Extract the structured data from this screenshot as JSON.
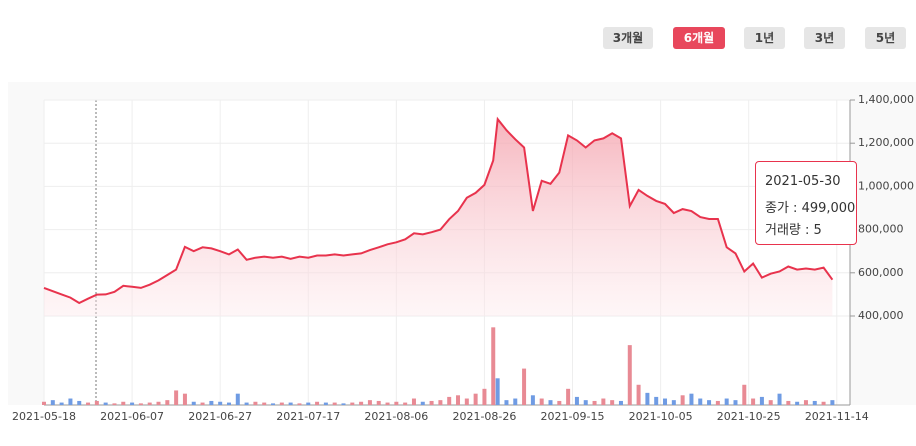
{
  "buttons": [
    "3개월",
    "6개월",
    "1년",
    "3년",
    "5년"
  ],
  "active_button": 1,
  "chart_data": {
    "type": "area",
    "x": [
      "2021-05-18",
      "2021-05-20",
      "2021-05-22",
      "2021-05-24",
      "2021-05-26",
      "2021-05-28",
      "2021-05-30",
      "2021-06-01",
      "2021-06-03",
      "2021-06-05",
      "2021-06-07",
      "2021-06-09",
      "2021-06-11",
      "2021-06-13",
      "2021-06-15",
      "2021-06-17",
      "2021-06-19",
      "2021-06-21",
      "2021-06-23",
      "2021-06-25",
      "2021-06-27",
      "2021-06-29",
      "2021-07-01",
      "2021-07-03",
      "2021-07-05",
      "2021-07-07",
      "2021-07-09",
      "2021-07-11",
      "2021-07-13",
      "2021-07-15",
      "2021-07-17",
      "2021-07-19",
      "2021-07-21",
      "2021-07-23",
      "2021-07-25",
      "2021-07-27",
      "2021-07-29",
      "2021-07-31",
      "2021-08-02",
      "2021-08-04",
      "2021-08-06",
      "2021-08-08",
      "2021-08-10",
      "2021-08-12",
      "2021-08-14",
      "2021-08-16",
      "2021-08-18",
      "2021-08-20",
      "2021-08-22",
      "2021-08-24",
      "2021-08-26",
      "2021-08-28",
      "2021-08-29",
      "2021-08-31",
      "2021-09-02",
      "2021-09-04",
      "2021-09-06",
      "2021-09-08",
      "2021-09-10",
      "2021-09-12",
      "2021-09-14",
      "2021-09-16",
      "2021-09-18",
      "2021-09-20",
      "2021-09-22",
      "2021-09-24",
      "2021-09-26",
      "2021-09-28",
      "2021-09-30",
      "2021-10-02",
      "2021-10-04",
      "2021-10-06",
      "2021-10-08",
      "2021-10-10",
      "2021-10-12",
      "2021-10-14",
      "2021-10-16",
      "2021-10-18",
      "2021-10-20",
      "2021-10-22",
      "2021-10-24",
      "2021-10-26",
      "2021-10-28",
      "2021-10-30",
      "2021-11-01",
      "2021-11-03",
      "2021-11-05",
      "2021-11-07",
      "2021-11-09",
      "2021-11-11",
      "2021-11-13"
    ],
    "series": [
      {
        "name": "종가",
        "color": "#e8334d",
        "values": [
          530000,
          515000,
          500000,
          485000,
          460000,
          480000,
          499000,
          500000,
          512000,
          540000,
          535000,
          530000,
          545000,
          565000,
          590000,
          615000,
          720000,
          700000,
          718000,
          713000,
          700000,
          685000,
          708000,
          660000,
          670000,
          675000,
          670000,
          675000,
          665000,
          675000,
          670000,
          680000,
          680000,
          685000,
          680000,
          685000,
          690000,
          705000,
          718000,
          732000,
          741000,
          755000,
          783000,
          778000,
          788000,
          800000,
          848000,
          886000,
          947000,
          970000,
          1007000,
          1120000,
          1311000,
          1260000,
          1218000,
          1180000,
          886000,
          1026000,
          1012000,
          1064000,
          1236000,
          1213000,
          1180000,
          1213000,
          1222000,
          1246000,
          1222000,
          909000,
          984000,
          956000,
          933000,
          919000,
          877000,
          895000,
          886000,
          858000,
          849000,
          849000,
          718000,
          690000,
          606000,
          643000,
          578000,
          596000,
          606000,
          629000,
          615000,
          620000,
          615000,
          624000,
          568000
        ]
      },
      {
        "name": "거래량",
        "axis": "y2",
        "values": [
          4,
          6,
          3,
          8,
          5,
          3,
          5,
          3,
          2,
          4,
          3,
          2,
          3,
          4,
          6,
          18,
          14,
          4,
          3,
          5,
          4,
          3,
          14,
          3,
          4,
          3,
          2,
          3,
          3,
          2,
          3,
          4,
          3,
          3,
          2,
          3,
          4,
          6,
          5,
          3,
          4,
          3,
          8,
          4,
          5,
          6,
          10,
          12,
          8,
          14,
          20,
          96,
          33,
          6,
          8,
          45,
          12,
          8,
          6,
          5,
          20,
          10,
          6,
          5,
          8,
          6,
          5,
          74,
          25,
          15,
          10,
          8,
          6,
          12,
          14,
          8,
          6,
          5,
          8,
          6,
          25,
          8,
          10,
          6,
          14,
          5,
          4,
          6,
          5,
          4,
          6
        ],
        "colors": [
          "#e88a94",
          "#6f9be3",
          "#6f9be3",
          "#6f9be3",
          "#6f9be3",
          "#e88a94",
          "#e88a94",
          "#6f9be3",
          "#e88a94",
          "#e88a94",
          "#6f9be3",
          "#e88a94",
          "#e88a94",
          "#e88a94",
          "#e88a94",
          "#e88a94",
          "#e88a94",
          "#6f9be3",
          "#e88a94",
          "#6f9be3",
          "#6f9be3",
          "#6f9be3",
          "#6f9be3",
          "#6f9be3",
          "#e88a94",
          "#e88a94",
          "#6f9be3",
          "#e88a94",
          "#6f9be3",
          "#e88a94",
          "#6f9be3",
          "#e88a94",
          "#6f9be3",
          "#e88a94",
          "#6f9be3",
          "#e88a94",
          "#e88a94",
          "#e88a94",
          "#e88a94",
          "#e88a94",
          "#e88a94",
          "#e88a94",
          "#e88a94",
          "#6f9be3",
          "#e88a94",
          "#e88a94",
          "#e88a94",
          "#e88a94",
          "#e88a94",
          "#e88a94",
          "#e88a94",
          "#e88a94",
          "#6f9be3",
          "#6f9be3",
          "#6f9be3",
          "#e88a94",
          "#6f9be3",
          "#e88a94",
          "#6f9be3",
          "#e88a94",
          "#e88a94",
          "#6f9be3",
          "#6f9be3",
          "#e88a94",
          "#e88a94",
          "#e88a94",
          "#6f9be3",
          "#e88a94",
          "#e88a94",
          "#6f9be3",
          "#6f9be3",
          "#6f9be3",
          "#6f9be3",
          "#e88a94",
          "#6f9be3",
          "#6f9be3",
          "#6f9be3",
          "#e88a94",
          "#6f9be3",
          "#6f9be3",
          "#e88a94",
          "#e88a94",
          "#6f9be3",
          "#e88a94",
          "#6f9be3",
          "#e88a94",
          "#6f9be3",
          "#e88a94",
          "#6f9be3",
          "#e88a94",
          "#6f9be3"
        ]
      }
    ],
    "xlim": [
      "2021-05-18",
      "2021-11-17"
    ],
    "xticks": [
      "2021-05-18",
      "2021-06-07",
      "2021-06-27",
      "2021-07-17",
      "2021-08-06",
      "2021-08-26",
      "2021-09-15",
      "2021-10-05",
      "2021-10-25",
      "2021-11-14"
    ],
    "ylim": [
      400000,
      1400000
    ],
    "yticks": [
      {
        "value": 400000,
        "label": "400,000"
      },
      {
        "value": 600000,
        "label": "600,000"
      },
      {
        "value": 800000,
        "label": "800,000"
      },
      {
        "value": 1000000,
        "label": "1,000,000"
      },
      {
        "value": 1200000,
        "label": "1,200,000"
      },
      {
        "value": 1400000,
        "label": "1,400,000"
      }
    ],
    "y2lim": [
      0,
      110
    ],
    "grid": true,
    "tooltip": {
      "date": "2021-05-30",
      "price": "종가 : 499,000",
      "volume": "거래량 : 5"
    }
  }
}
